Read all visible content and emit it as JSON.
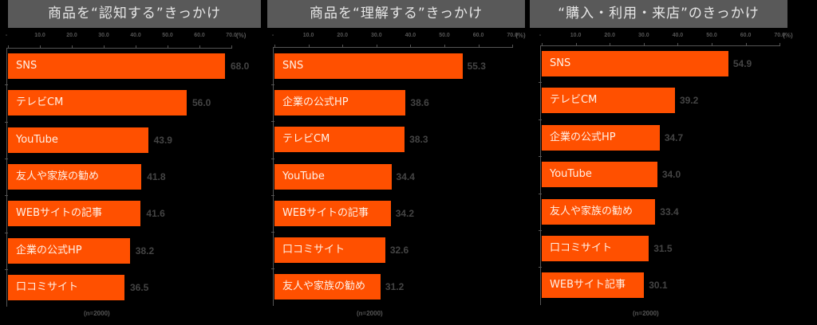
{
  "chart_data": [
    {
      "type": "bar",
      "orientation": "horizontal",
      "title": "商品を“認知する”きっかけ",
      "categories": [
        "SNS",
        "テレビCM",
        "YouTube",
        "友人や家族の勧め",
        "WEBサイトの記事",
        "企業の公式HP",
        "口コミサイト"
      ],
      "values": [
        68.0,
        56.0,
        43.9,
        41.8,
        41.6,
        38.2,
        36.5
      ],
      "value_labels": [
        "68.0",
        "56.0",
        "43.9",
        "41.8",
        "41.6",
        "38.2",
        "36.5"
      ],
      "xlim": [
        0,
        70
      ],
      "xticks": [
        "-",
        "10.0",
        "20.0",
        "30.0",
        "40.0",
        "50.0",
        "60.0",
        "70.0"
      ],
      "xlabel": "(%)",
      "note": "(n=2000)",
      "bar_color": "#ff5000",
      "grid": false
    },
    {
      "type": "bar",
      "orientation": "horizontal",
      "title": "商品を“理解する”きっかけ",
      "categories": [
        "SNS",
        "企業の公式HP",
        "テレビCM",
        "YouTube",
        "WEBサイトの記事",
        "口コミサイト",
        "友人や家族の勧め"
      ],
      "values": [
        55.3,
        38.6,
        38.3,
        34.4,
        34.2,
        32.6,
        31.2
      ],
      "value_labels": [
        "55.3",
        "38.6",
        "38.3",
        "34.4",
        "34.2",
        "32.6",
        "31.2"
      ],
      "xlim": [
        0,
        70
      ],
      "xticks": [
        "-",
        "10.0",
        "20.0",
        "30.0",
        "40.0",
        "50.0",
        "60.0",
        "70.0"
      ],
      "xlabel": "(%)",
      "note": "(n=2000)",
      "bar_color": "#ff5000",
      "grid": false
    },
    {
      "type": "bar",
      "orientation": "horizontal",
      "title": "“購入・利用・来店”のきっかけ",
      "categories": [
        "SNS",
        "テレビCM",
        "企業の公式HP",
        "YouTube",
        "友人や家族の勧め",
        "口コミサイト",
        "WEBサイト記事"
      ],
      "values": [
        54.9,
        39.2,
        34.7,
        34.0,
        33.4,
        31.5,
        30.1
      ],
      "value_labels": [
        "54.9",
        "39.2",
        "34.7",
        "34.0",
        "33.4",
        "31.5",
        "30.1"
      ],
      "xlim": [
        0,
        70
      ],
      "xticks": [
        "-",
        "10.0",
        "20.0",
        "30.0",
        "40.0",
        "50.0",
        "60.0",
        "70.0"
      ],
      "xlabel": "(%)",
      "note": "(n=2000)",
      "bar_color": "#ff5000",
      "grid": false
    }
  ],
  "colors": {
    "background": "#000000",
    "title_box": "#595959",
    "title_text": "#e6e6e6",
    "bar": "#ff5000",
    "value_text": "#444444"
  }
}
